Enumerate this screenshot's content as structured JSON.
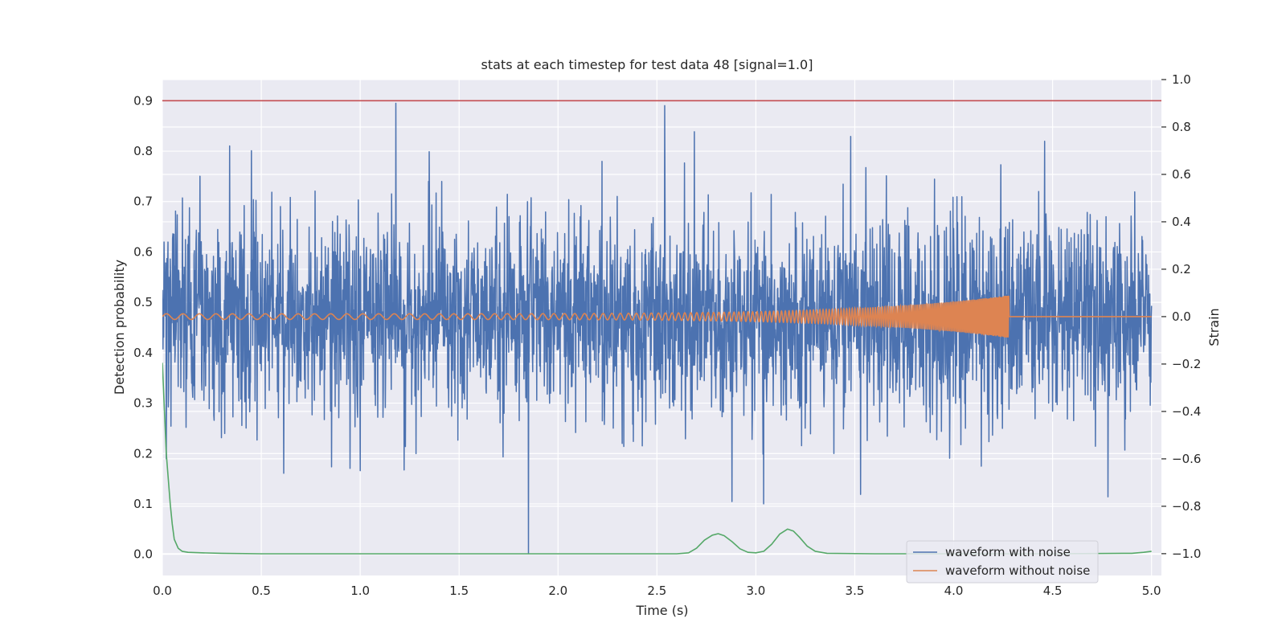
{
  "chart_data": {
    "type": "line",
    "title": "stats at each timestep for test data 48 [signal=1.0]",
    "xlabel": "Time (s)",
    "ylabel_left": "Detection probability",
    "ylabel_right": "Strain",
    "xlim": [
      0.0,
      5.05
    ],
    "ylim_left": [
      -0.042,
      0.942
    ],
    "ylim_right": [
      -1.092,
      1.0
    ],
    "x_ticks": [
      "0.0",
      "0.5",
      "1.0",
      "1.5",
      "2.0",
      "2.5",
      "3.0",
      "3.5",
      "4.0",
      "4.5",
      "5.0"
    ],
    "y_ticks_left": [
      "0.0",
      "0.1",
      "0.2",
      "0.3",
      "0.4",
      "0.5",
      "0.6",
      "0.7",
      "0.8",
      "0.9"
    ],
    "y_ticks_right": [
      "−1.0",
      "−0.8",
      "−0.6",
      "−0.4",
      "−0.2",
      "0.0",
      "0.2",
      "0.4",
      "0.6",
      "0.8",
      "1.0"
    ],
    "grid": true,
    "legend_position": "lower-right",
    "threshold": {
      "value": 0.9,
      "axis": "left",
      "color": "#c44e52"
    },
    "series": [
      {
        "name": "waveform with noise",
        "axis": "right",
        "color": "#4c72b0",
        "noise_sigma": 0.2,
        "t_range": [
          0.0,
          5.0
        ],
        "samples": 3000,
        "spikes": [
          {
            "x": 1.18,
            "y": 0.9
          },
          {
            "x": 2.54,
            "y": 0.89
          },
          {
            "x": 1.85,
            "y": -1.0
          },
          {
            "x": 0.34,
            "y": 0.72
          },
          {
            "x": 0.45,
            "y": 0.7
          },
          {
            "x": 2.69,
            "y": 0.78
          },
          {
            "x": 3.48,
            "y": 0.76
          },
          {
            "x": 4.46,
            "y": 0.74
          },
          {
            "x": 1.0,
            "y": -0.65
          },
          {
            "x": 2.88,
            "y": -0.78
          },
          {
            "x": 3.04,
            "y": -0.79
          },
          {
            "x": 3.53,
            "y": -0.75
          },
          {
            "x": 4.78,
            "y": -0.76
          },
          {
            "x": 0.02,
            "y": -0.6
          }
        ]
      },
      {
        "name": "waveform without noise",
        "axis": "right",
        "color": "#dd8452",
        "t_range": [
          0.0,
          5.0
        ],
        "merger_time": 4.28,
        "amplitude_start": 0.012,
        "amplitude_end": 0.09,
        "freq_start_hz": 12,
        "freq_end_hz": 150
      },
      {
        "axis": "left",
        "color": "#55a868",
        "points": [
          [
            0.0,
            0.38
          ],
          [
            0.02,
            0.2
          ],
          [
            0.04,
            0.1
          ],
          [
            0.05,
            0.06
          ],
          [
            0.06,
            0.03
          ],
          [
            0.08,
            0.012
          ],
          [
            0.1,
            0.006
          ],
          [
            0.13,
            0.004
          ],
          [
            0.2,
            0.003
          ],
          [
            0.3,
            0.002
          ],
          [
            0.5,
            0.001
          ],
          [
            1.0,
            0.001
          ],
          [
            2.0,
            0.001
          ],
          [
            2.6,
            0.001
          ],
          [
            2.66,
            0.003
          ],
          [
            2.7,
            0.012
          ],
          [
            2.74,
            0.028
          ],
          [
            2.78,
            0.038
          ],
          [
            2.81,
            0.041
          ],
          [
            2.84,
            0.037
          ],
          [
            2.88,
            0.025
          ],
          [
            2.92,
            0.011
          ],
          [
            2.96,
            0.004
          ],
          [
            3.0,
            0.003
          ],
          [
            3.04,
            0.006
          ],
          [
            3.08,
            0.02
          ],
          [
            3.12,
            0.04
          ],
          [
            3.16,
            0.05
          ],
          [
            3.19,
            0.046
          ],
          [
            3.22,
            0.034
          ],
          [
            3.26,
            0.016
          ],
          [
            3.3,
            0.006
          ],
          [
            3.36,
            0.002
          ],
          [
            3.6,
            0.001
          ],
          [
            4.0,
            0.001
          ],
          [
            4.5,
            0.001
          ],
          [
            4.9,
            0.002
          ],
          [
            4.96,
            0.004
          ],
          [
            5.0,
            0.006
          ]
        ]
      }
    ]
  }
}
